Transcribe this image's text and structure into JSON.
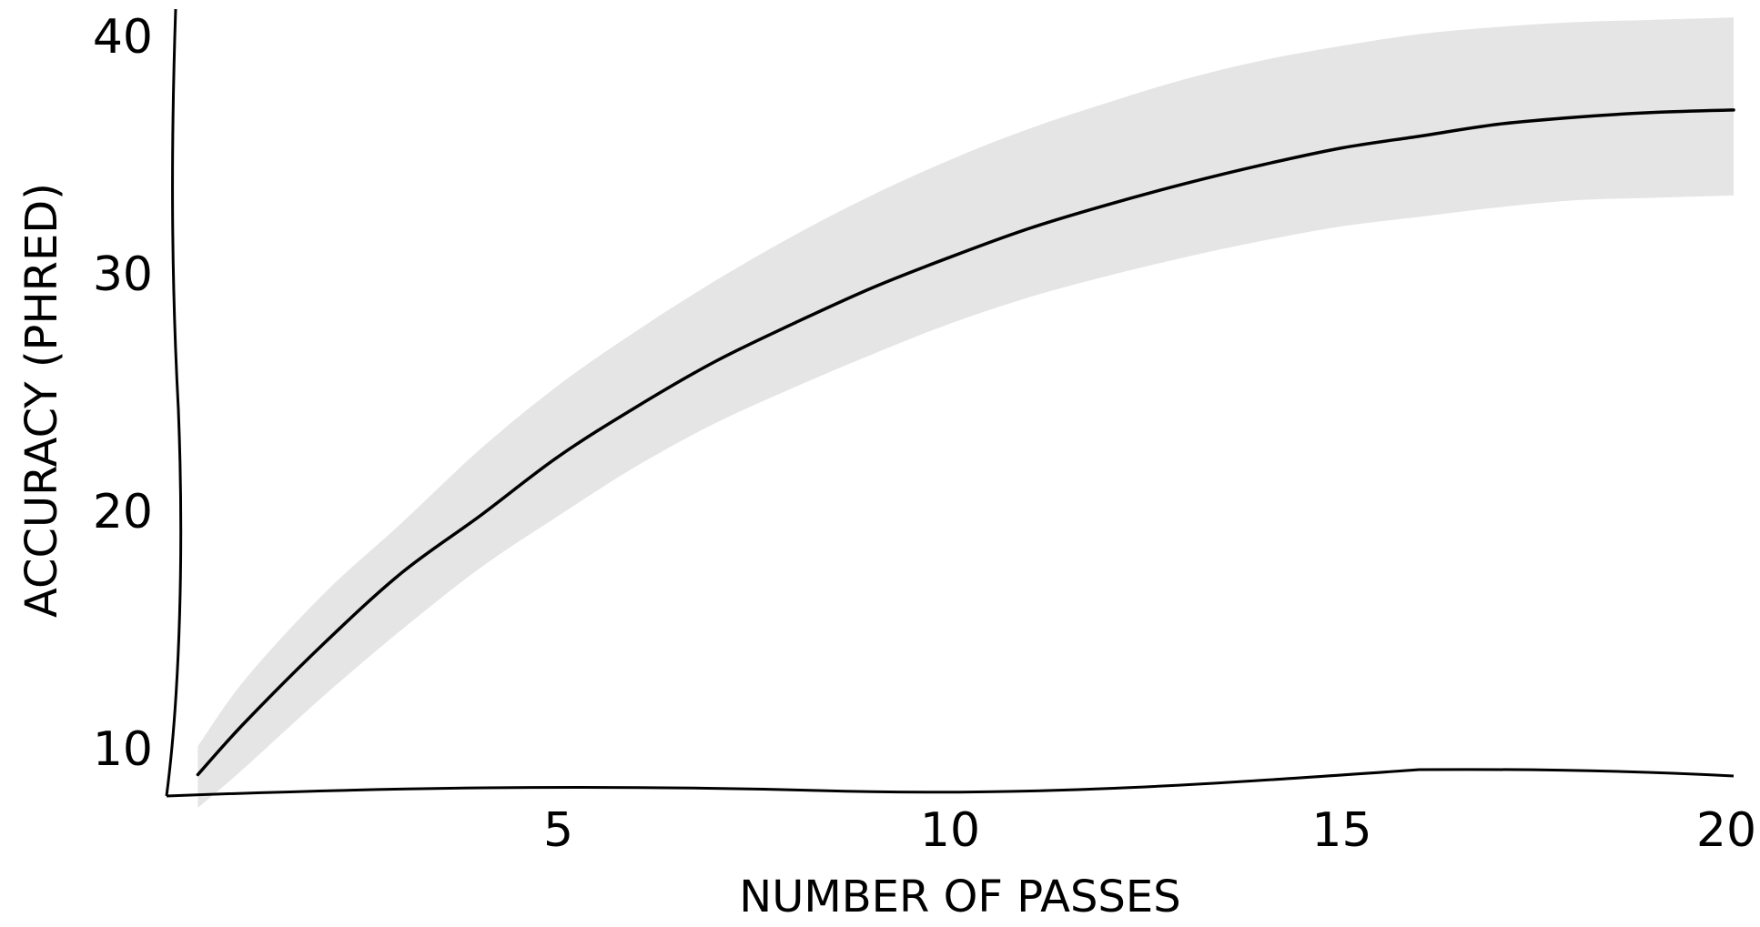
{
  "chart_data": {
    "type": "line",
    "xlabel": "NUMBER OF PASSES",
    "ylabel": "ACCURACY (PHRED)",
    "xlim": [
      0,
      20
    ],
    "ylim": [
      8,
      40
    ],
    "x_ticks": [
      "5",
      "10",
      "15",
      "20"
    ],
    "y_ticks": [
      "10",
      "20",
      "30",
      "40"
    ],
    "grid": false,
    "colors": {
      "line": "#000000",
      "band": "#e5e5e5"
    },
    "series": [
      {
        "x": [
          0.4,
          1,
          2,
          3,
          4,
          5,
          6,
          7,
          8,
          9,
          10,
          11,
          12,
          13,
          14,
          15,
          16,
          17,
          18,
          19,
          20
        ],
        "y": [
          8.9,
          11.1,
          14.4,
          17.4,
          19.8,
          22.3,
          24.4,
          26.3,
          27.9,
          29.4,
          30.7,
          31.9,
          32.9,
          33.8,
          34.6,
          35.3,
          35.8,
          36.3,
          36.6,
          36.8,
          36.9
        ],
        "lower": [
          7.5,
          9.2,
          12.2,
          15.0,
          17.6,
          19.8,
          21.9,
          23.7,
          25.2,
          26.6,
          27.9,
          29.0,
          29.9,
          30.7,
          31.4,
          32.0,
          32.4,
          32.8,
          33.1,
          33.2,
          33.3
        ],
        "upper": [
          10.1,
          12.9,
          16.5,
          19.5,
          22.6,
          25.3,
          27.6,
          29.7,
          31.6,
          33.3,
          34.8,
          36.1,
          37.2,
          38.2,
          39.0,
          39.6,
          40.1,
          40.4,
          40.6,
          40.7,
          40.8
        ]
      }
    ]
  }
}
